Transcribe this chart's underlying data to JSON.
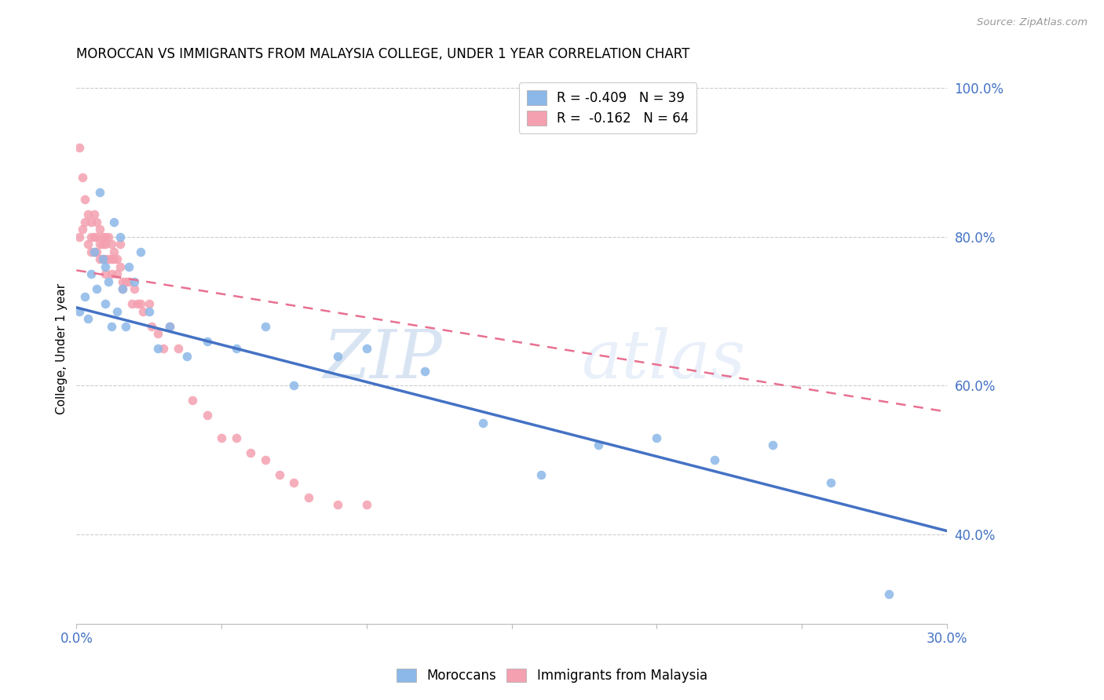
{
  "title": "MOROCCAN VS IMMIGRANTS FROM MALAYSIA COLLEGE, UNDER 1 YEAR CORRELATION CHART",
  "source": "Source: ZipAtlas.com",
  "ylabel": "College, Under 1 year",
  "xlim": [
    0.0,
    0.3
  ],
  "ylim": [
    0.28,
    1.02
  ],
  "xticks": [
    0.0,
    0.05,
    0.1,
    0.15,
    0.2,
    0.25,
    0.3
  ],
  "xticklabels": [
    "0.0%",
    "",
    "",
    "",
    "",
    "",
    "30.0%"
  ],
  "yticks_right": [
    1.0,
    0.8,
    0.6,
    0.4
  ],
  "yticklabels_right": [
    "100.0%",
    "80.0%",
    "60.0%",
    "40.0%"
  ],
  "blue_R": -0.409,
  "blue_N": 39,
  "pink_R": -0.162,
  "pink_N": 64,
  "blue_color": "#8BB8E8",
  "pink_color": "#F4A0B0",
  "blue_trend_color": "#4472C4",
  "pink_trend_color": "#E87090",
  "watermark_zip": "ZIP",
  "watermark_atlas": "atlas",
  "legend_label_blue": "Moroccans",
  "legend_label_pink": "Immigrants from Malaysia",
  "blue_scatter_x": [
    0.001,
    0.003,
    0.004,
    0.005,
    0.006,
    0.007,
    0.008,
    0.009,
    0.01,
    0.01,
    0.011,
    0.012,
    0.013,
    0.014,
    0.015,
    0.016,
    0.017,
    0.018,
    0.02,
    0.022,
    0.025,
    0.028,
    0.032,
    0.038,
    0.045,
    0.055,
    0.065,
    0.075,
    0.09,
    0.1,
    0.12,
    0.14,
    0.16,
    0.18,
    0.2,
    0.22,
    0.24,
    0.26,
    0.28
  ],
  "blue_scatter_y": [
    0.7,
    0.72,
    0.69,
    0.75,
    0.78,
    0.73,
    0.86,
    0.77,
    0.71,
    0.76,
    0.74,
    0.68,
    0.82,
    0.7,
    0.8,
    0.73,
    0.68,
    0.76,
    0.74,
    0.78,
    0.7,
    0.65,
    0.68,
    0.64,
    0.66,
    0.65,
    0.68,
    0.6,
    0.64,
    0.65,
    0.62,
    0.55,
    0.48,
    0.52,
    0.53,
    0.5,
    0.52,
    0.47,
    0.32
  ],
  "pink_scatter_x": [
    0.001,
    0.001,
    0.002,
    0.002,
    0.003,
    0.003,
    0.004,
    0.004,
    0.005,
    0.005,
    0.005,
    0.006,
    0.006,
    0.006,
    0.007,
    0.007,
    0.007,
    0.008,
    0.008,
    0.008,
    0.009,
    0.009,
    0.009,
    0.01,
    0.01,
    0.01,
    0.01,
    0.011,
    0.011,
    0.012,
    0.012,
    0.012,
    0.013,
    0.013,
    0.014,
    0.014,
    0.015,
    0.015,
    0.016,
    0.016,
    0.017,
    0.018,
    0.019,
    0.02,
    0.021,
    0.022,
    0.023,
    0.025,
    0.026,
    0.028,
    0.03,
    0.032,
    0.035,
    0.04,
    0.045,
    0.05,
    0.055,
    0.06,
    0.065,
    0.07,
    0.075,
    0.08,
    0.09,
    0.1
  ],
  "pink_scatter_y": [
    0.92,
    0.8,
    0.88,
    0.81,
    0.85,
    0.82,
    0.83,
    0.79,
    0.82,
    0.8,
    0.78,
    0.83,
    0.8,
    0.78,
    0.82,
    0.8,
    0.78,
    0.81,
    0.79,
    0.77,
    0.8,
    0.77,
    0.79,
    0.8,
    0.79,
    0.77,
    0.75,
    0.8,
    0.77,
    0.79,
    0.77,
    0.75,
    0.78,
    0.77,
    0.77,
    0.75,
    0.79,
    0.76,
    0.74,
    0.73,
    0.74,
    0.74,
    0.71,
    0.73,
    0.71,
    0.71,
    0.7,
    0.71,
    0.68,
    0.67,
    0.65,
    0.68,
    0.65,
    0.58,
    0.56,
    0.53,
    0.53,
    0.51,
    0.5,
    0.48,
    0.47,
    0.45,
    0.44,
    0.44
  ],
  "blue_trend_x0": 0.0,
  "blue_trend_y0": 0.705,
  "blue_trend_x1": 0.3,
  "blue_trend_y1": 0.405,
  "pink_trend_x0": 0.0,
  "pink_trend_y0": 0.755,
  "pink_trend_x1": 0.3,
  "pink_trend_y1": 0.565
}
